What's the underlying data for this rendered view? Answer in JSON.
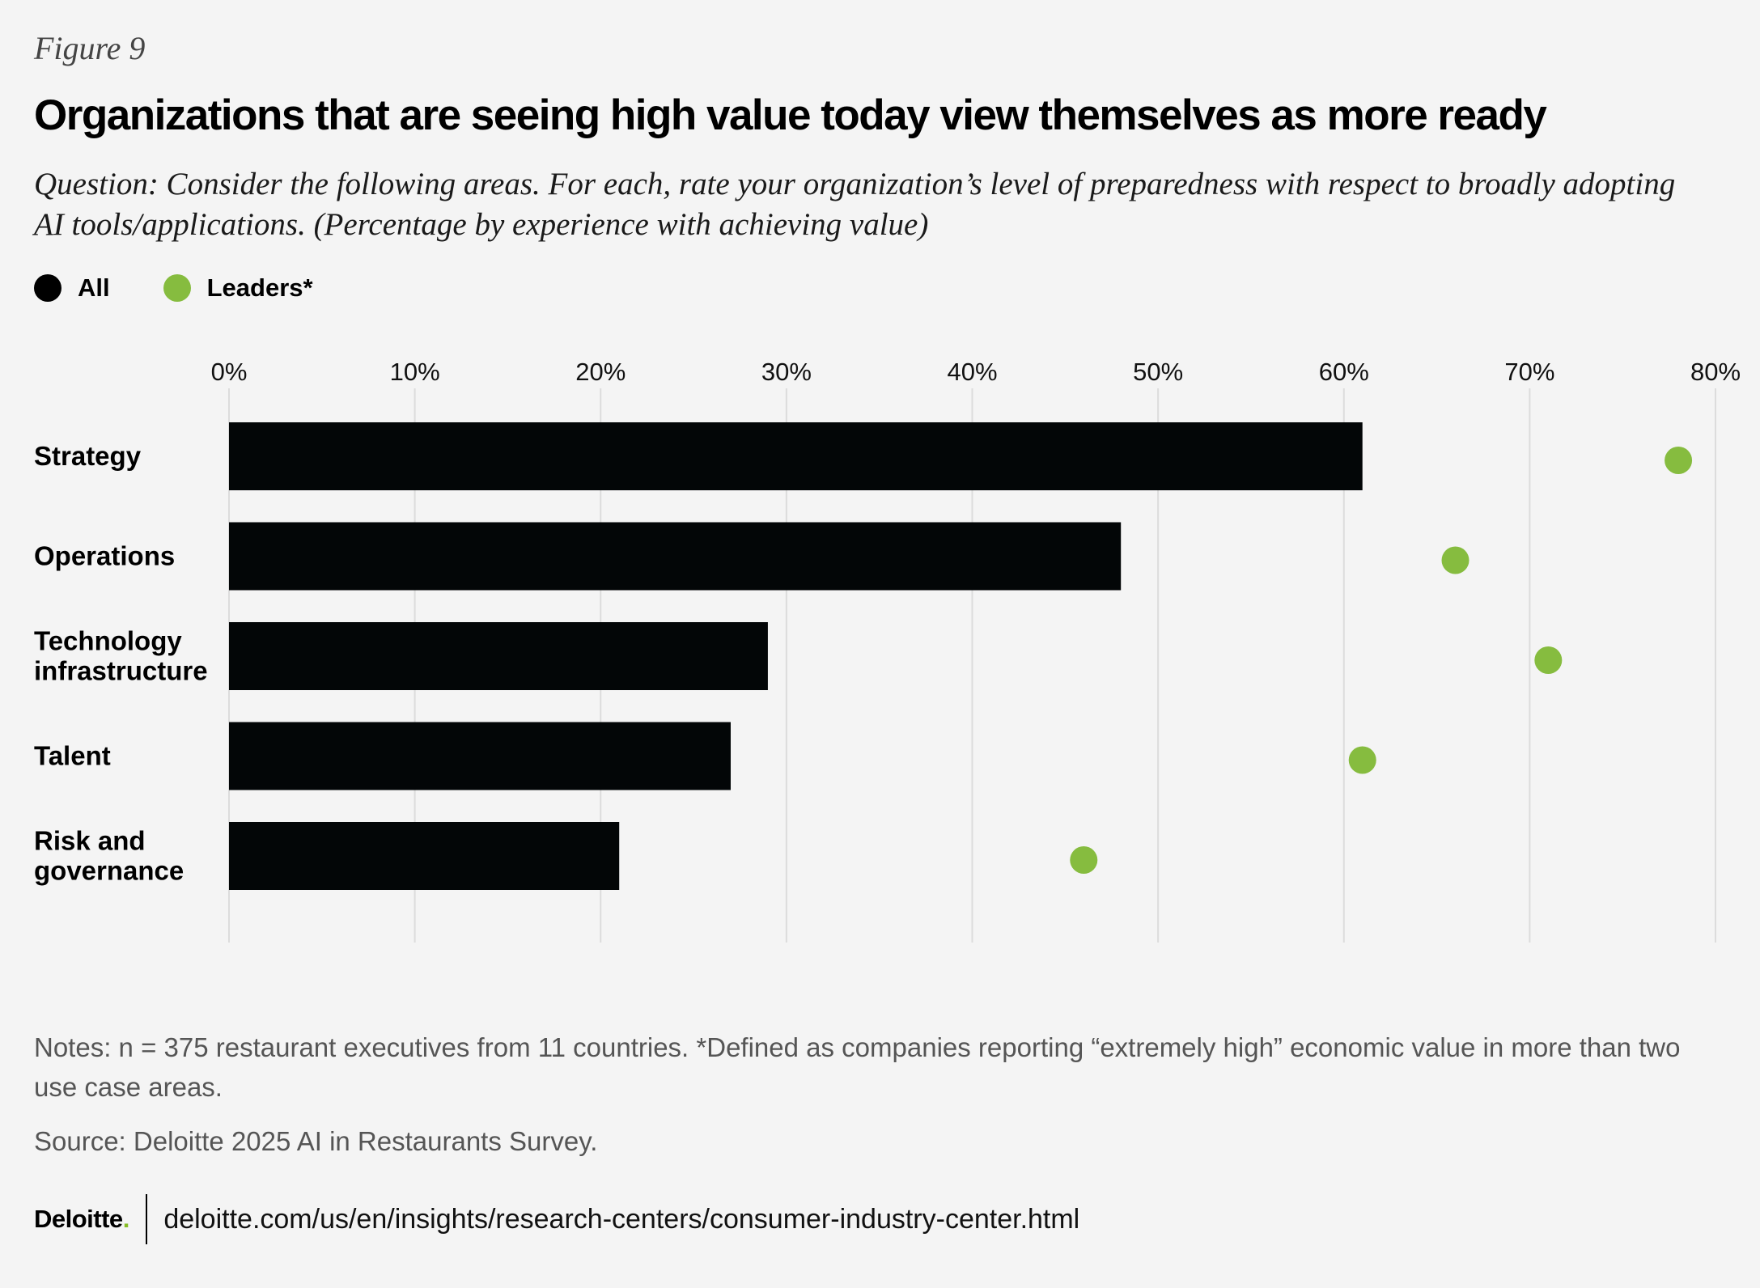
{
  "figure_label": "Figure 9",
  "title": "Organizations that are seeing high value today view themselves as more ready",
  "subtitle": "Question: Consider the following areas. For each, rate your organization’s level of preparedness with respect to broadly adopting AI tools/applications. (Percentage by experience with achieving value)",
  "legend": [
    {
      "label": "All",
      "color": "#000000"
    },
    {
      "label": "Leaders*",
      "color": "#86bc3f"
    }
  ],
  "chart_data": {
    "type": "bar",
    "orientation": "horizontal",
    "x_ticks": [
      "0%",
      "10%",
      "20%",
      "30%",
      "40%",
      "50%",
      "60%",
      "70%",
      "80%"
    ],
    "xlim": [
      0,
      80
    ],
    "grid": true,
    "legend_position": "top-left",
    "categories": [
      [
        "Strategy"
      ],
      [
        "Operations"
      ],
      [
        "Technology",
        "infrastructure"
      ],
      [
        "Talent"
      ],
      [
        "Risk and",
        "governance"
      ]
    ],
    "series": [
      {
        "name": "All",
        "style": "bar",
        "color": "#030607",
        "values": [
          61,
          48,
          29,
          27,
          21
        ]
      },
      {
        "name": "Leaders*",
        "style": "dot",
        "color": "#86bc3f",
        "values": [
          78,
          66,
          71,
          61,
          46
        ]
      }
    ]
  },
  "notes": "Notes: n = 375 restaurant executives from 11 countries. *Defined as companies reporting “extremely high”  economic value in more than two use case areas.",
  "source": "Source: Deloitte 2025 AI in Restaurants Survey.",
  "footer": {
    "logo": "Deloitte",
    "logo_dot": ".",
    "url": "deloitte.com/us/en/insights/research-centers/consumer-industry-center.html"
  }
}
